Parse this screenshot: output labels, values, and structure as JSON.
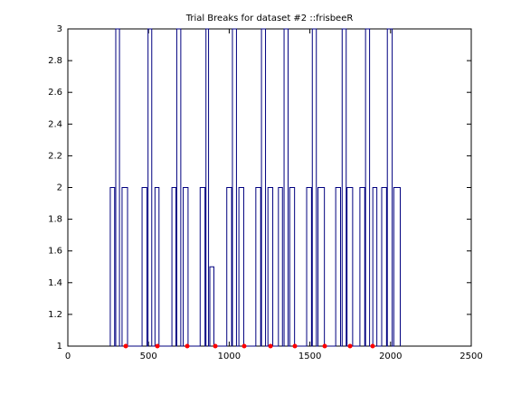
{
  "chart_data": {
    "type": "line",
    "title": "Trial Breaks for dataset #2 ::frisbeeR",
    "xlim": [
      0,
      2500
    ],
    "xticks": [
      0,
      500,
      1000,
      1500,
      2000,
      2500
    ],
    "ylim": [
      1,
      3
    ],
    "yticks": [
      1,
      1.2,
      1.4,
      1.6,
      1.8,
      2,
      2.2,
      2.4,
      2.6,
      2.8,
      3
    ],
    "grid": false,
    "series": [
      {
        "color": "#00007f",
        "style": "line",
        "x": [
          263,
          263,
          290,
          290,
          297,
          297,
          320,
          320,
          336,
          336,
          370,
          370,
          460,
          460,
          490,
          490,
          497,
          497,
          520,
          520,
          540,
          540,
          565,
          565,
          645,
          645,
          670,
          670,
          675,
          675,
          700,
          700,
          715,
          715,
          745,
          745,
          820,
          820,
          850,
          850,
          856,
          856,
          872,
          872,
          880,
          880,
          905,
          905,
          985,
          985,
          1015,
          1015,
          1020,
          1020,
          1045,
          1045,
          1060,
          1060,
          1090,
          1090,
          1165,
          1165,
          1195,
          1195,
          1200,
          1200,
          1225,
          1225,
          1240,
          1240,
          1270,
          1270,
          1305,
          1305,
          1330,
          1330,
          1340,
          1340,
          1365,
          1365,
          1375,
          1375,
          1405,
          1405,
          1480,
          1480,
          1510,
          1510,
          1515,
          1515,
          1540,
          1540,
          1550,
          1550,
          1590,
          1590,
          1660,
          1660,
          1690,
          1690,
          1700,
          1700,
          1725,
          1725,
          1730,
          1730,
          1765,
          1765,
          1810,
          1810,
          1840,
          1840,
          1845,
          1845,
          1870,
          1870,
          1890,
          1890,
          1915,
          1915,
          1945,
          1945,
          1975,
          1975,
          1980,
          1980,
          2010,
          2010,
          2020,
          2020,
          2060,
          2060
        ],
        "values": [
          1,
          2,
          2,
          1,
          1,
          3,
          3,
          1,
          1,
          2,
          2,
          1,
          1,
          2,
          2,
          1,
          1,
          3,
          3,
          1,
          1,
          2,
          2,
          1,
          1,
          2,
          2,
          1,
          1,
          3,
          3,
          1,
          1,
          2,
          2,
          1,
          1,
          2,
          2,
          1,
          1,
          3,
          3,
          1,
          1,
          1.5,
          1.5,
          1,
          1,
          2,
          2,
          1,
          1,
          3,
          3,
          1,
          1,
          2,
          2,
          1,
          1,
          2,
          2,
          1,
          1,
          3,
          3,
          1,
          1,
          2,
          2,
          1,
          1,
          2,
          2,
          1,
          1,
          3,
          3,
          1,
          1,
          2,
          2,
          1,
          1,
          2,
          2,
          1,
          1,
          3,
          3,
          1,
          1,
          2,
          2,
          1,
          1,
          2,
          2,
          1,
          1,
          3,
          3,
          1,
          1,
          2,
          2,
          1,
          1,
          2,
          2,
          1,
          1,
          3,
          3,
          1,
          1,
          2,
          2,
          1,
          1,
          2,
          2,
          1,
          1,
          3,
          3,
          1,
          1,
          2,
          2,
          1
        ]
      },
      {
        "color": "#ff0000",
        "style": "marker",
        "x": [
          359,
          555,
          740,
          914,
          1093,
          1256,
          1407,
          1592,
          1749,
          1889
        ],
        "values": [
          1,
          1,
          1,
          1,
          1,
          1,
          1,
          1,
          1,
          1
        ]
      }
    ]
  }
}
